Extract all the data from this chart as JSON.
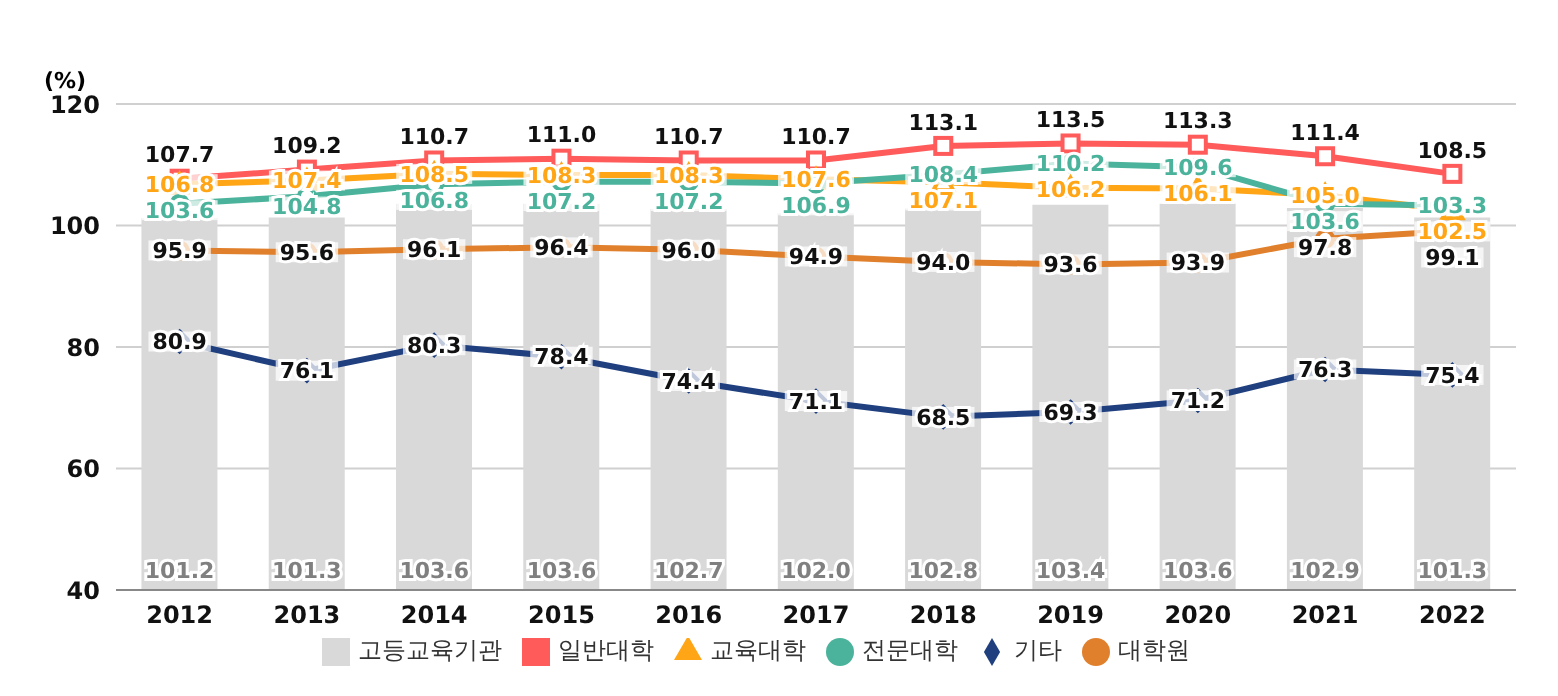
{
  "chart_data": {
    "type": "line",
    "ylabel": "(%)",
    "categories": [
      "2012",
      "2013",
      "2014",
      "2015",
      "2016",
      "2017",
      "2018",
      "2019",
      "2020",
      "2021",
      "2022"
    ],
    "series": [
      {
        "name": "고등교육기관",
        "type": "bar",
        "color": "#d9d9d9",
        "values": [
          101.2,
          101.3,
          103.6,
          103.6,
          102.7,
          102.0,
          102.8,
          103.4,
          103.6,
          102.9,
          101.3
        ],
        "value_labels": [
          "101.2",
          "101.3",
          "103.6",
          "103.6",
          "102.7",
          "102.0",
          "102.8",
          "103.4",
          "103.6",
          "102.9",
          "101.3"
        ]
      },
      {
        "name": "일반대학",
        "color": "#ff5b5b",
        "marker": "square",
        "values": [
          107.7,
          109.2,
          110.7,
          111.0,
          110.7,
          110.7,
          113.1,
          113.5,
          113.3,
          111.4,
          108.5
        ],
        "value_labels": [
          "107.7",
          "109.2",
          "110.7",
          "111.0",
          "110.7",
          "110.7",
          "113.1",
          "113.5",
          "113.3",
          "111.4",
          "108.5"
        ]
      },
      {
        "name": "교육대학",
        "color": "#ffa516",
        "marker": "triangle",
        "values": [
          106.8,
          107.4,
          108.5,
          108.3,
          108.3,
          107.6,
          107.1,
          106.2,
          106.1,
          105.0,
          102.5
        ],
        "value_labels": [
          "106.8",
          "107.4",
          "108.5",
          "108.3",
          "108.3",
          "107.6",
          "107.1",
          "106.2",
          "106.1",
          "105.0",
          "102.5"
        ]
      },
      {
        "name": "전문대학",
        "color": "#4bb39b",
        "marker": "circle",
        "values": [
          103.6,
          104.8,
          106.8,
          107.2,
          107.2,
          106.9,
          108.4,
          110.2,
          109.6,
          103.6,
          103.3
        ],
        "value_labels": [
          "103.6",
          "104.8",
          "106.8",
          "107.2",
          "107.2",
          "106.9",
          "108.4",
          "110.2",
          "109.6",
          "103.6",
          "103.3"
        ]
      },
      {
        "name": "기타",
        "color": "#1f3f7f",
        "marker": "diamond",
        "values": [
          80.9,
          76.1,
          80.3,
          78.4,
          74.4,
          71.1,
          68.5,
          69.3,
          71.2,
          76.3,
          75.4
        ],
        "value_labels": [
          "80.9",
          "76.1",
          "80.3",
          "78.4",
          "74.4",
          "71.1",
          "68.5",
          "69.3",
          "71.2",
          "76.3",
          "75.4"
        ]
      },
      {
        "name": "대학원",
        "color": "#e0802c",
        "marker": "circle",
        "values": [
          95.9,
          95.6,
          96.1,
          96.4,
          96.0,
          94.9,
          94.0,
          93.6,
          93.9,
          97.8,
          99.1
        ],
        "value_labels": [
          "95.9",
          "95.6",
          "96.1",
          "96.4",
          "96.0",
          "94.9",
          "94.0",
          "93.6",
          "93.9",
          "97.8",
          "99.1"
        ]
      }
    ],
    "ylim": [
      40,
      120
    ],
    "yticks": [
      40,
      60,
      80,
      100,
      120
    ],
    "grid": "y",
    "legend": "bottom"
  }
}
